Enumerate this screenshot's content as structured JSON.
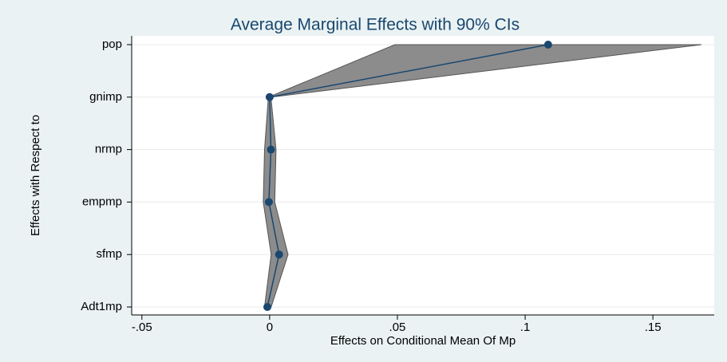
{
  "chart_data": {
    "type": "ci-profile",
    "title": "Average Marginal Effects with 90% CIs",
    "x_label": "Effects on Conditional Mean Of Mp",
    "y_label": "Effects with Respect to",
    "categories": [
      "pop",
      "gnimp",
      "nrmp",
      "empmp",
      "sfmp",
      "Adt1mp"
    ],
    "values": [
      0.109,
      0.0,
      0.0005,
      -0.0003,
      0.0037,
      -0.0009
    ],
    "ci_lower": [
      0.049,
      -0.0005,
      -0.002,
      -0.0025,
      0.0006,
      -0.002
    ],
    "ci_upper": [
      0.169,
      0.0005,
      0.0025,
      0.002,
      0.0072,
      0.0006
    ],
    "color": "#1a476f",
    "band_color": "#8c8c8c",
    "xlim": [
      -0.054,
      0.174
    ],
    "xticks": [
      {
        "value": -0.05,
        "label": "-.05"
      },
      0,
      {
        "value": 0.05,
        "label": ".05"
      },
      {
        "value": 0.1,
        "label": ".1"
      },
      {
        "value": 0.15,
        "label": ".15"
      }
    ],
    "grid": true
  }
}
